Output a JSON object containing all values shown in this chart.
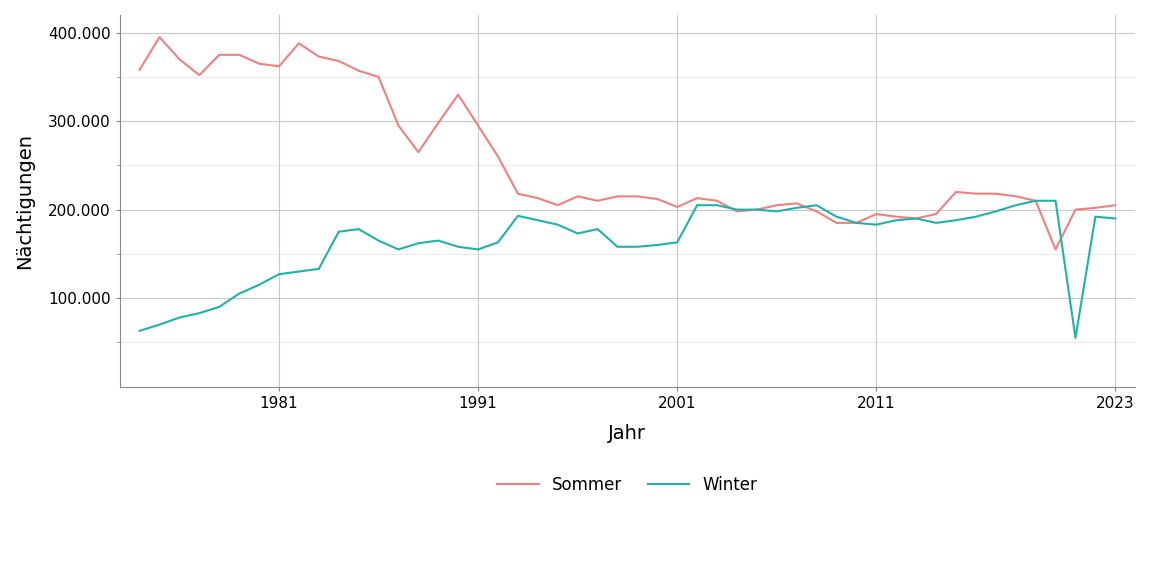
{
  "title": "",
  "xlabel": "Jahr",
  "ylabel": "Nächtigungen",
  "background_color": "#ffffff",
  "grid_color_major": "#c8c8c8",
  "grid_color_minor": "#e5e5e5",
  "sommer_color": "#F08080",
  "winter_color": "#20B2AA",
  "legend_labels": [
    "Sommer",
    "Winter"
  ],
  "years": [
    1974,
    1975,
    1976,
    1977,
    1978,
    1979,
    1980,
    1981,
    1982,
    1983,
    1984,
    1985,
    1986,
    1987,
    1988,
    1989,
    1990,
    1991,
    1992,
    1993,
    1994,
    1995,
    1996,
    1997,
    1998,
    1999,
    2000,
    2001,
    2002,
    2003,
    2004,
    2005,
    2006,
    2007,
    2008,
    2009,
    2010,
    2011,
    2012,
    2013,
    2014,
    2015,
    2016,
    2017,
    2018,
    2019,
    2020,
    2021,
    2022,
    2023
  ],
  "sommer": [
    358000,
    395000,
    370000,
    352000,
    375000,
    375000,
    365000,
    362000,
    388000,
    373000,
    368000,
    357000,
    350000,
    295000,
    265000,
    298000,
    330000,
    295000,
    260000,
    218000,
    213000,
    205000,
    215000,
    210000,
    215000,
    215000,
    212000,
    203000,
    213000,
    210000,
    198000,
    200000,
    205000,
    207000,
    198000,
    185000,
    185000,
    195000,
    192000,
    190000,
    195000,
    220000,
    218000,
    218000,
    215000,
    210000,
    155000,
    200000,
    202000,
    205000
  ],
  "winter": [
    63000,
    70000,
    78000,
    83000,
    90000,
    105000,
    115000,
    127000,
    130000,
    133000,
    175000,
    178000,
    165000,
    155000,
    162000,
    165000,
    158000,
    155000,
    163000,
    193000,
    188000,
    183000,
    173000,
    178000,
    158000,
    158000,
    160000,
    163000,
    205000,
    205000,
    200000,
    200000,
    198000,
    202000,
    205000,
    192000,
    185000,
    183000,
    188000,
    190000,
    185000,
    188000,
    192000,
    198000,
    205000,
    210000,
    210000,
    55000,
    192000,
    190000
  ],
  "yticks_major": [
    100000,
    200000,
    300000,
    400000
  ],
  "yticks_minor": [
    50000,
    150000,
    250000,
    350000
  ],
  "ytick_labels": [
    "100.000",
    "200.000",
    "300.000",
    "400.000"
  ],
  "xticks": [
    1981,
    1991,
    2001,
    2011,
    2023
  ],
  "ylim": [
    0,
    420000
  ],
  "xlim": [
    1973,
    2024
  ]
}
